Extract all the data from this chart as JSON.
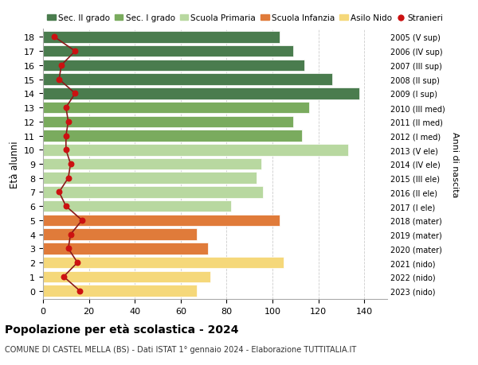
{
  "ages": [
    18,
    17,
    16,
    15,
    14,
    13,
    12,
    11,
    10,
    9,
    8,
    7,
    6,
    5,
    4,
    3,
    2,
    1,
    0
  ],
  "years": [
    "2005 (V sup)",
    "2006 (IV sup)",
    "2007 (III sup)",
    "2008 (II sup)",
    "2009 (I sup)",
    "2010 (III med)",
    "2011 (II med)",
    "2012 (I med)",
    "2013 (V ele)",
    "2014 (IV ele)",
    "2015 (III ele)",
    "2016 (II ele)",
    "2017 (I ele)",
    "2018 (mater)",
    "2019 (mater)",
    "2020 (mater)",
    "2021 (nido)",
    "2022 (nido)",
    "2023 (nido)"
  ],
  "bar_values": [
    103,
    109,
    114,
    126,
    138,
    116,
    109,
    113,
    133,
    95,
    93,
    96,
    82,
    103,
    67,
    72,
    105,
    73,
    67
  ],
  "bar_colors": [
    "#4a7c4e",
    "#4a7c4e",
    "#4a7c4e",
    "#4a7c4e",
    "#4a7c4e",
    "#7aab5e",
    "#7aab5e",
    "#7aab5e",
    "#b8d8a0",
    "#b8d8a0",
    "#b8d8a0",
    "#b8d8a0",
    "#b8d8a0",
    "#e07b3a",
    "#e07b3a",
    "#e07b3a",
    "#f5d87a",
    "#f5d87a",
    "#f5d87a"
  ],
  "stranieri_values": [
    5,
    14,
    8,
    7,
    14,
    10,
    11,
    10,
    10,
    12,
    11,
    7,
    10,
    17,
    12,
    11,
    15,
    9,
    16
  ],
  "title": "Popolazione per età scolastica - 2024",
  "subtitle": "COMUNE DI CASTEL MELLA (BS) - Dati ISTAT 1° gennaio 2024 - Elaborazione TUTTITALIA.IT",
  "ylabel": "Età alunni",
  "right_label": "Anni di nascita",
  "xlim": [
    0,
    150
  ],
  "xticks": [
    0,
    20,
    40,
    60,
    80,
    100,
    120,
    140
  ],
  "legend_labels": [
    "Sec. II grado",
    "Sec. I grado",
    "Scuola Primaria",
    "Scuola Infanzia",
    "Asilo Nido",
    "Stranieri"
  ],
  "legend_colors": [
    "#4a7c4e",
    "#7aab5e",
    "#b8d8a0",
    "#e07b3a",
    "#f5d87a",
    "#cc1111"
  ],
  "background_color": "#ffffff",
  "grid_color": "#cccccc",
  "bar_height": 0.82,
  "stranieri_color": "#cc1111",
  "line_color": "#8b1a1a"
}
